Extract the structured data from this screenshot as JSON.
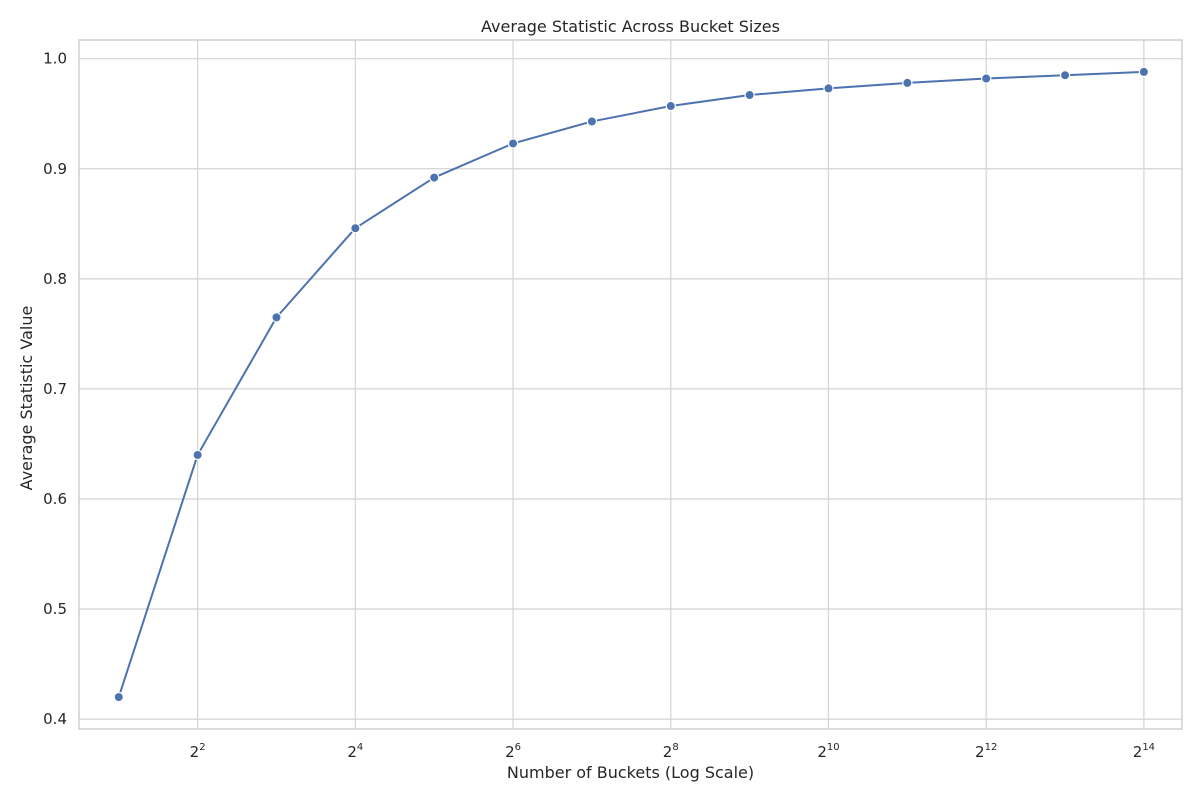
{
  "chart_data": {
    "type": "line",
    "title": "Average Statistic Across Bucket Sizes",
    "xlabel": "Number of Buckets (Log Scale)",
    "ylabel": "Average Statistic Value",
    "x_scale": "log2",
    "x_ticks": [
      {
        "value": 4,
        "base": "2",
        "exp": "2"
      },
      {
        "value": 16,
        "base": "2",
        "exp": "4"
      },
      {
        "value": 64,
        "base": "2",
        "exp": "6"
      },
      {
        "value": 256,
        "base": "2",
        "exp": "8"
      },
      {
        "value": 1024,
        "base": "2",
        "exp": "10"
      },
      {
        "value": 4096,
        "base": "2",
        "exp": "12"
      },
      {
        "value": 16384,
        "base": "2",
        "exp": "14"
      }
    ],
    "y_ticks": [
      "0.4",
      "0.5",
      "0.6",
      "0.7",
      "0.8",
      "0.9",
      "1.0"
    ],
    "xlim": [
      1.41,
      22900
    ],
    "ylim": [
      0.391,
      1.017
    ],
    "grid": true,
    "series": [
      {
        "color": "#4c72b0",
        "marker": "circle",
        "x": [
          2,
          4,
          8,
          16,
          32,
          64,
          128,
          256,
          512,
          1024,
          2048,
          4096,
          8192,
          16384
        ],
        "y": [
          0.42,
          0.64,
          0.765,
          0.846,
          0.892,
          0.923,
          0.943,
          0.957,
          0.967,
          0.973,
          0.978,
          0.982,
          0.985,
          0.988
        ]
      }
    ]
  }
}
